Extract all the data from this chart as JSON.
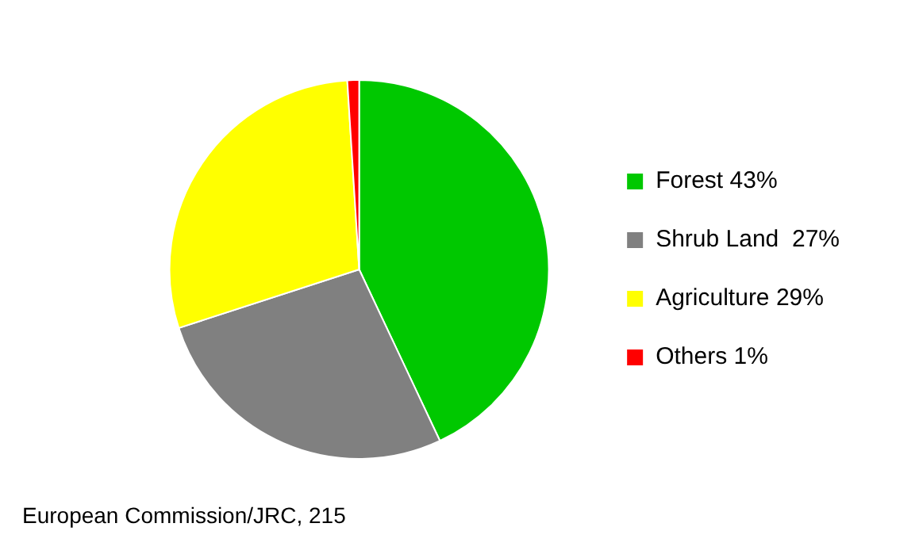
{
  "chart_data": {
    "type": "pie",
    "categories": [
      "Forest 43%",
      "Shrub Land  27%",
      "Agriculture 29%",
      "Others 1%"
    ],
    "values": [
      43,
      27,
      29,
      1
    ],
    "colors": [
      "#00c800",
      "#808080",
      "#ffff00",
      "#ff0000"
    ],
    "legend": "right",
    "annotations": [
      "European Commission/JRC, 215"
    ]
  }
}
